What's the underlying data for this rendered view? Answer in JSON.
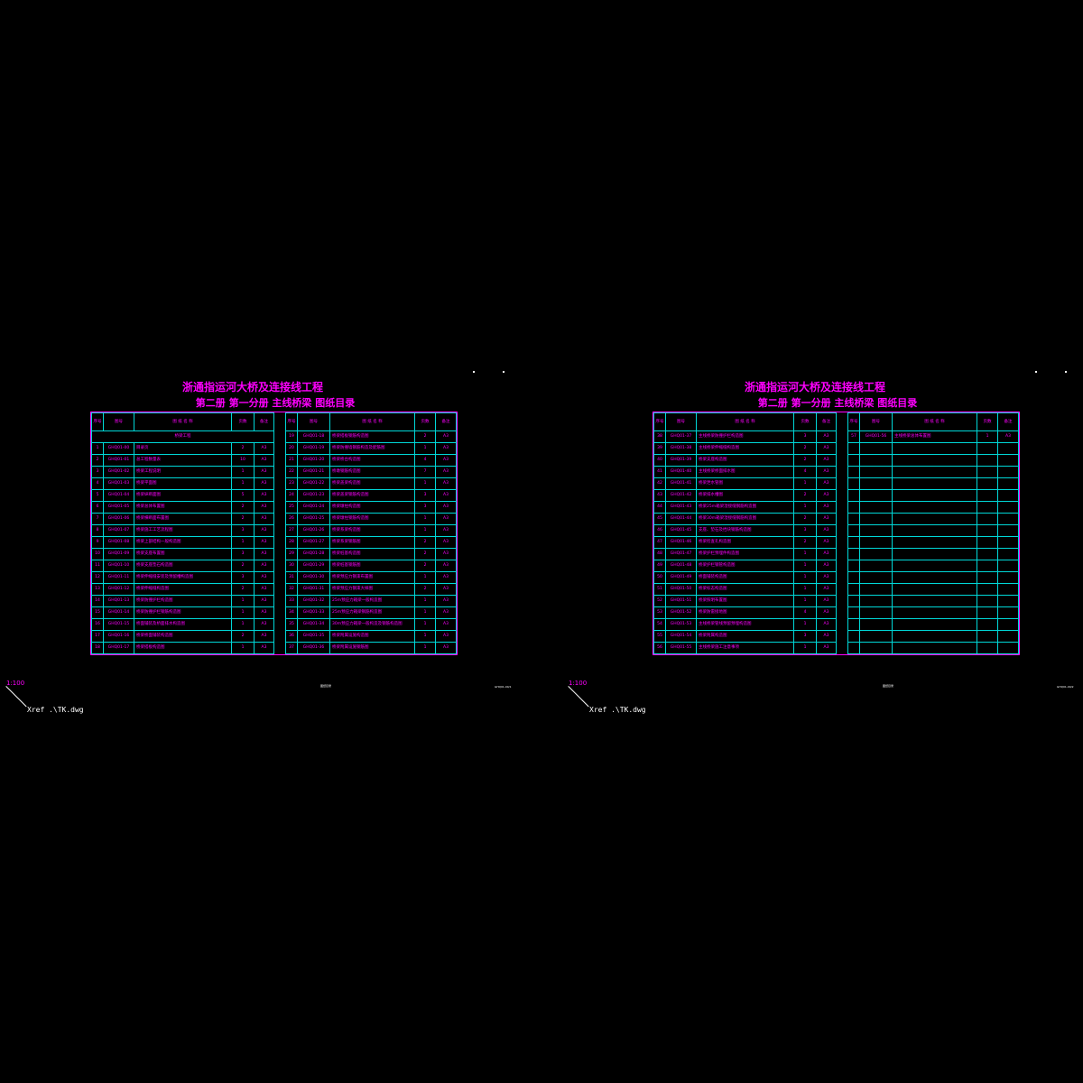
{
  "left_sheet": {
    "title": "浙通指运河大桥及连接线工程",
    "subtitle": "第二册 第一分册 主线桥梁 图纸目录",
    "headers": {
      "num": "序号",
      "code": "图号",
      "name": "图 纸 名 称",
      "pages": "页数",
      "note": "备注"
    },
    "section_label": "桥梁工程",
    "col1": [
      [
        "1",
        "GHQ01-00",
        "目录页",
        "2",
        "A3"
      ],
      [
        "2",
        "GHQ01-01",
        "总工程数量表",
        "10",
        "A3"
      ],
      [
        "3",
        "GHQ01-02",
        "桥梁工程说明",
        "1",
        "A3"
      ],
      [
        "4",
        "GHQ01-03",
        "桥梁平面图",
        "1",
        "A3"
      ],
      [
        "5",
        "GHQ01-04",
        "桥梁纵断面图",
        "5",
        "A3"
      ],
      [
        "6",
        "GHQ01-05",
        "桥梁总体布置图",
        "2",
        "A3"
      ],
      [
        "7",
        "GHQ01-06",
        "桥梁横断面布置图",
        "2",
        "A3"
      ],
      [
        "8",
        "GHQ01-07",
        "桥梁施工工艺流程图",
        "3",
        "A3"
      ],
      [
        "9",
        "GHQ01-08",
        "桥梁上部结构一般构造图",
        "1",
        "A3"
      ],
      [
        "10",
        "GHQ01-09",
        "桥梁支座布置图",
        "3",
        "A3"
      ],
      [
        "11",
        "GHQ01-10",
        "桥梁支座垫石构造图",
        "2",
        "A3"
      ],
      [
        "12",
        "GHQ01-11",
        "桥梁伸缩缝安装及预留槽构造图",
        "3",
        "A3"
      ],
      [
        "13",
        "GHQ01-12",
        "桥梁伸缩缝构造图",
        "2",
        "A3"
      ],
      [
        "14",
        "GHQ01-13",
        "桥梁防撞护栏构造图",
        "1",
        "A3"
      ],
      [
        "15",
        "GHQ01-14",
        "桥梁防撞护栏钢筋构造图",
        "1",
        "A3"
      ],
      [
        "16",
        "GHQ01-15",
        "桥面铺装及桥面排水构造图",
        "1",
        "A3"
      ],
      [
        "17",
        "GHQ01-16",
        "桥梁桥面铺装构造图",
        "2",
        "A3"
      ],
      [
        "18",
        "GHQ01-17",
        "桥梁搭板构造图",
        "1",
        "A3"
      ]
    ],
    "col2": [
      [
        "19",
        "GHQ01-18",
        "桥梁搭板钢筋构造图",
        "2",
        "A3"
      ],
      [
        "20",
        "GHQ01-19",
        "桥梁防撞墙钢筋构造及配筋图",
        "1",
        "A3"
      ],
      [
        "21",
        "GHQ01-20",
        "桥梁桥台构造图",
        "4",
        "A3"
      ],
      [
        "22",
        "GHQ01-21",
        "桥墩钢筋构造图",
        "7",
        "A3"
      ],
      [
        "23",
        "GHQ01-22",
        "桥梁盖梁构造图",
        "1",
        "A3"
      ],
      [
        "24",
        "GHQ01-23",
        "桥梁盖梁钢筋构造图",
        "3",
        "A3"
      ],
      [
        "25",
        "GHQ01-24",
        "桥梁墩柱构造图",
        "3",
        "A3"
      ],
      [
        "26",
        "GHQ01-25",
        "桥梁墩柱钢筋构造图",
        "1",
        "A3"
      ],
      [
        "27",
        "GHQ01-26",
        "桥梁系梁构造图",
        "1",
        "A3"
      ],
      [
        "28",
        "GHQ01-27",
        "桥梁系梁钢筋图",
        "2",
        "A3"
      ],
      [
        "29",
        "GHQ01-28",
        "桥梁桩基构造图",
        "2",
        "A3"
      ],
      [
        "30",
        "GHQ01-29",
        "桥梁桩基钢筋图",
        "2",
        "A3"
      ],
      [
        "31",
        "GHQ01-30",
        "桥梁预应力钢束布置图",
        "1",
        "A3"
      ],
      [
        "32",
        "GHQ01-31",
        "桥梁预应力钢束大样图",
        "2",
        "A3"
      ],
      [
        "33",
        "GHQ01-32",
        "25m预应力箱梁一般构造图",
        "1",
        "A3"
      ],
      [
        "34",
        "GHQ01-33",
        "25m预应力箱梁钢筋构造图",
        "1",
        "A3"
      ],
      [
        "35",
        "GHQ01-34",
        "30m预应力箱梁一般构造及钢筋构造图",
        "1",
        "A3"
      ],
      [
        "36",
        "GHQ01-35",
        "桥梁附属设施构造图",
        "1",
        "A3"
      ],
      [
        "37",
        "GHQ01-36",
        "桥梁附属设施钢筋图",
        "1",
        "A3"
      ]
    ],
    "scale_label": "1:100",
    "xref_label": "Xref .\\TK.dwg",
    "small_note": "图纸目录",
    "small_code": "GHQ01-00/1"
  },
  "right_sheet": {
    "title": "浙通指运河大桥及连接线工程",
    "subtitle": "第二册 第一分册 主线桥梁 图纸目录",
    "headers": {
      "num": "序号",
      "code": "图号",
      "name": "图 纸 名 称",
      "pages": "页数",
      "note": "备注"
    },
    "col1": [
      [
        "38",
        "GHQ01-37",
        "主线桥梁防撞护栏构造图",
        "3",
        "A3"
      ],
      [
        "39",
        "GHQ01-38",
        "主线桥梁伸缩缝构造图",
        "2",
        "A3"
      ],
      [
        "40",
        "GHQ01-39",
        "桥梁支座构造图",
        "2",
        "A3"
      ],
      [
        "41",
        "GHQ01-40",
        "主线桥梁桥面排水图",
        "4",
        "A3"
      ],
      [
        "42",
        "GHQ01-41",
        "桥梁泄水管图",
        "1",
        "A3"
      ],
      [
        "43",
        "GHQ01-42",
        "桥梁排水槽图",
        "2",
        "A3"
      ],
      [
        "44",
        "GHQ01-43",
        "桥梁25m箱梁湿接缝钢筋构造图",
        "1",
        "A3"
      ],
      [
        "45",
        "GHQ01-44",
        "桥梁30m箱梁湿接缝钢筋构造图",
        "2",
        "A3"
      ],
      [
        "46",
        "GHQ01-45",
        "支座、垫石及挡块钢筋构造图",
        "3",
        "A3"
      ],
      [
        "47",
        "GHQ01-46",
        "桥梁检查孔构造图",
        "2",
        "A3"
      ],
      [
        "48",
        "GHQ01-47",
        "桥梁护栏预埋件构造图",
        "1",
        "A3"
      ],
      [
        "49",
        "GHQ01-48",
        "桥梁护栏钢管构造图",
        "1",
        "A3"
      ],
      [
        "50",
        "GHQ01-49",
        "桥面铺装构造图",
        "1",
        "A3"
      ],
      [
        "51",
        "GHQ01-50",
        "桥梁标志构造图",
        "1",
        "A3"
      ],
      [
        "52",
        "GHQ01-51",
        "桥梁照明布置图",
        "1",
        "A3"
      ],
      [
        "53",
        "GHQ01-52",
        "桥梁防雷接地图",
        "4",
        "A3"
      ],
      [
        "54",
        "GHQ01-53",
        "主线桥梁管线预留预埋构造图",
        "1",
        "A3"
      ],
      [
        "55",
        "GHQ01-54",
        "桥梁附属构造图",
        "3",
        "A3"
      ],
      [
        "56",
        "GHQ01-55",
        "主线桥梁施工注意事项",
        "1",
        "A3"
      ]
    ],
    "col2": [
      [
        "57",
        "GHQ01-56",
        "主线桥梁总体布置图",
        "1",
        "A3"
      ]
    ],
    "empty_rows_col2": 18,
    "scale_label": "1:100",
    "xref_label": "Xref .\\TK.dwg",
    "small_note": "图纸目录",
    "small_code": "GHQ01-00/2"
  }
}
